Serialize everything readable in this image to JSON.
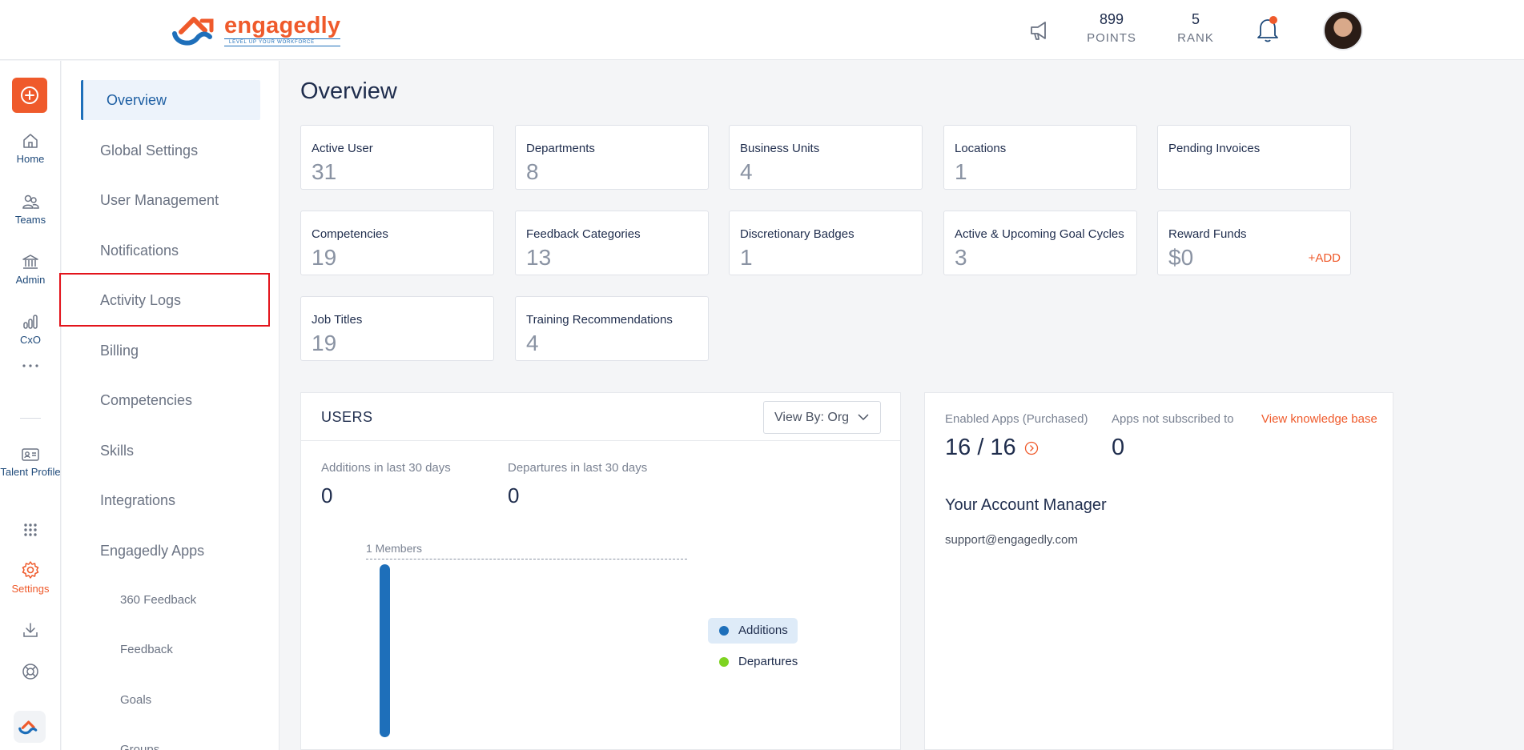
{
  "brand": {
    "name_main": "engaged",
    "name_suffix": "ly",
    "tagline": "LEVEL UP YOUR WORKFORCE",
    "accent": "#ef5a2b",
    "blue": "#1e6fba"
  },
  "header": {
    "points_value": "899",
    "points_label": "POINTS",
    "rank_value": "5",
    "rank_label": "RANK"
  },
  "rail": {
    "items": [
      {
        "label": "Home",
        "icon": "home-icon"
      },
      {
        "label": "Teams",
        "icon": "teams-icon"
      },
      {
        "label": "Admin",
        "icon": "admin-icon"
      },
      {
        "label": "CxO",
        "icon": "chart-icon"
      },
      {
        "label": "Talent Profile",
        "icon": "id-card-icon"
      },
      {
        "label": "Settings",
        "icon": "gear-icon"
      }
    ]
  },
  "sidebar": {
    "items": [
      {
        "label": "Overview"
      },
      {
        "label": "Global Settings"
      },
      {
        "label": "User Management"
      },
      {
        "label": "Notifications"
      },
      {
        "label": "Activity Logs"
      },
      {
        "label": "Billing"
      },
      {
        "label": "Competencies"
      },
      {
        "label": "Skills"
      },
      {
        "label": "Integrations"
      },
      {
        "label": "Engagedly Apps"
      },
      {
        "label": "360 Feedback"
      },
      {
        "label": "Feedback"
      },
      {
        "label": "Goals"
      },
      {
        "label": "Groups"
      }
    ]
  },
  "main": {
    "title": "Overview",
    "cards": [
      {
        "label": "Active User",
        "value": "31"
      },
      {
        "label": "Departments",
        "value": "8"
      },
      {
        "label": "Business Units",
        "value": "4"
      },
      {
        "label": "Locations",
        "value": "1"
      },
      {
        "label": "Pending Invoices",
        "value": ""
      },
      {
        "label": "Competencies",
        "value": "19"
      },
      {
        "label": "Feedback Categories",
        "value": "13"
      },
      {
        "label": "Discretionary Badges",
        "value": "1"
      },
      {
        "label": "Active & Upcoming Goal Cycles",
        "value": "3"
      },
      {
        "label": "Reward Funds",
        "value": "$0",
        "action": "+ADD"
      },
      {
        "label": "Job Titles",
        "value": "19"
      },
      {
        "label": "Training Recommendations",
        "value": "4"
      }
    ],
    "users": {
      "title": "USERS",
      "view_by": "View By: Org",
      "additions_label": "Additions in last 30 days",
      "additions_value": "0",
      "departures_label": "Departures in last 30 days",
      "departures_value": "0",
      "chart_max_label": "1 Members",
      "legend_additions": "Additions",
      "legend_departures": "Departures",
      "additions_color": "#1e6fba",
      "departures_color": "#7ed321"
    },
    "apps": {
      "enabled_label": "Enabled Apps (Purchased)",
      "enabled_value": "16 / 16",
      "not_sub_label": "Apps not subscribed to",
      "not_sub_value": "0",
      "kb_link": "View knowledge base",
      "account_manager_title": "Your Account Manager",
      "account_manager_email": "support@engagedly.com"
    }
  }
}
